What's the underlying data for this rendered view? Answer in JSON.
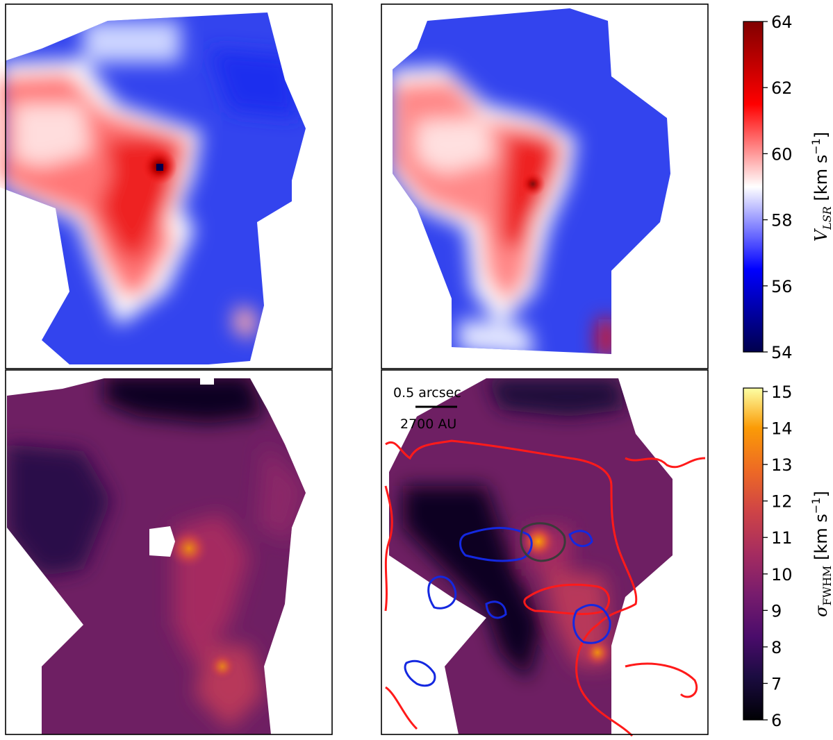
{
  "chart_data": [
    {
      "type": "heatmap",
      "panel": "top-left",
      "quantity": "V_LSR",
      "colormap": "seismic",
      "value_range": [
        54,
        64
      ],
      "features": {
        "peak_value": 63.5,
        "central_minimum": 54,
        "red_ridge": "61-62",
        "background_blue": "56-57",
        "west_lobe": "60-61"
      }
    },
    {
      "type": "heatmap",
      "panel": "top-right",
      "quantity": "V_LSR",
      "colormap": "seismic",
      "value_range": [
        54,
        64
      ],
      "features": {
        "peak_value": 63,
        "red_ridge": "61-62.5",
        "background_blue": "55.5-57",
        "west_lobe": "60-61",
        "south_east_edge_red": 63
      }
    },
    {
      "type": "heatmap",
      "panel": "bottom-left",
      "quantity": "sigma_FWHM",
      "colormap": "inferno",
      "value_range": [
        6,
        15
      ],
      "features": {
        "background": "8-10",
        "north_edge": "6-7",
        "central_hole": "masked",
        "bright_spots": "11-12"
      }
    },
    {
      "type": "heatmap",
      "panel": "bottom-right",
      "quantity": "sigma_FWHM",
      "colormap": "inferno",
      "value_range": [
        6,
        15
      ],
      "features": {
        "background": "8-10",
        "dark_stem": "6-7",
        "peak_near_source": 13.5,
        "south_east_peak": 12.5
      },
      "overlays": {
        "contours": [
          "red",
          "blue",
          "dark-grey"
        ]
      },
      "annotations": {
        "scalebar_top": "0.5 arcsec",
        "scalebar_bottom": "2700 AU"
      }
    }
  ],
  "colorbars": {
    "velocity": {
      "ticks": [
        "54",
        "56",
        "58",
        "60",
        "62",
        "64"
      ],
      "label_main": "V",
      "label_sub": "LSR",
      "label_units": " [km s",
      "label_exp": "−1",
      "label_close": "]"
    },
    "width": {
      "ticks": [
        "6",
        "7",
        "8",
        "9",
        "10",
        "11",
        "12",
        "13",
        "14",
        "15"
      ],
      "label_main": "σ",
      "label_sub": "FWHM",
      "label_units": " [km s",
      "label_exp": "−1",
      "label_close": "]"
    }
  },
  "annotations": {
    "scale_arcsec": "0.5 arcsec",
    "scale_au": "2700 AU"
  },
  "colors": {
    "contour_red": "#ff1a1a",
    "contour_blue": "#1428e0",
    "contour_dark": "#3a3a3a",
    "frame": "#000000"
  }
}
